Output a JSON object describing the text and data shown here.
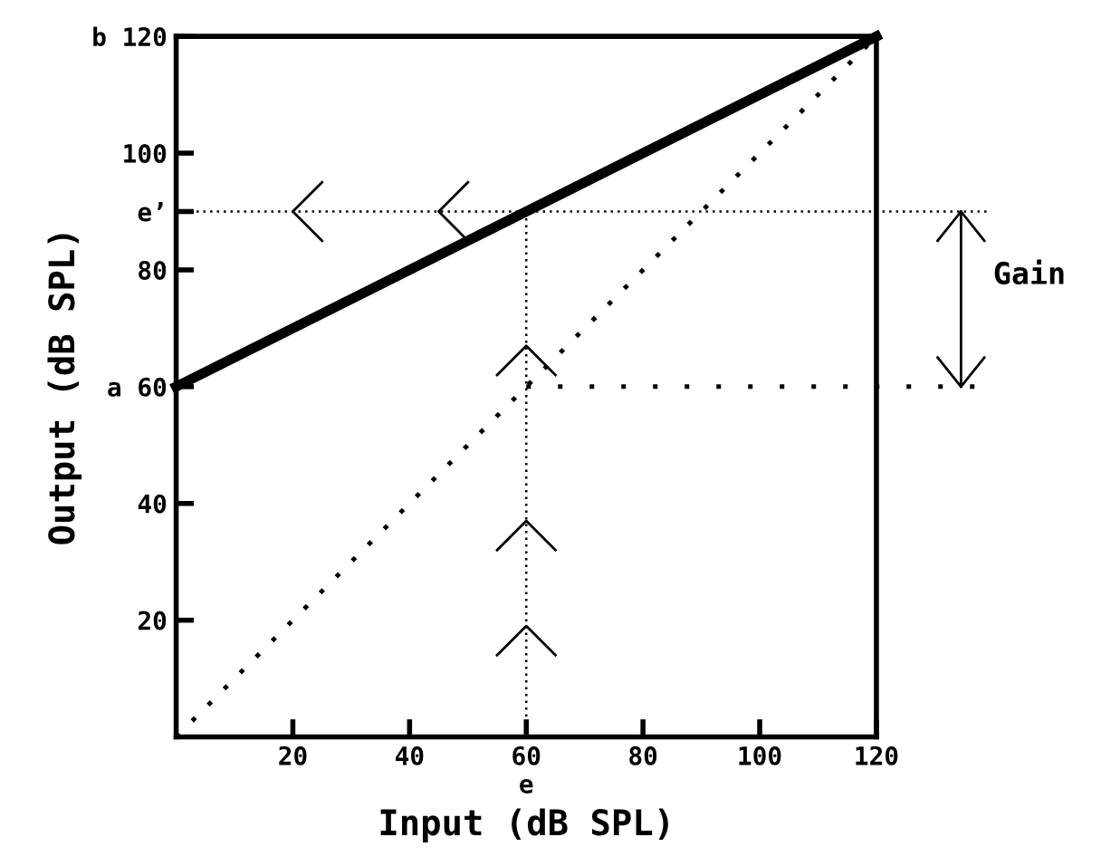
{
  "chart_data": {
    "type": "line",
    "xlabel": "Input (dB SPL)",
    "ylabel": "Output (dB SPL)",
    "annotations": [
      "Gain"
    ],
    "x": [
      0,
      120
    ],
    "xlim": [
      0,
      120
    ],
    "ylim": [
      0,
      120
    ],
    "xticks": [
      20,
      40,
      {
        "value": 60,
        "label": "60\ne"
      },
      80,
      100,
      120
    ],
    "yticks": [
      20,
      40,
      {
        "value": 60,
        "label": "a 60"
      },
      80,
      {
        "value": 90,
        "label": "e’"
      },
      100,
      {
        "value": 120,
        "label": "b 120"
      }
    ],
    "grid": false,
    "legend": false,
    "series": [
      {
        "color": "#000000",
        "values": [
          60,
          120
        ],
        "line_style": "solid"
      },
      {
        "color": "#000000",
        "values": [
          0,
          120
        ],
        "line_style": "dotted"
      }
    ],
    "ref_lines": [
      {
        "axis": "y",
        "value": 90,
        "color": "#000000",
        "line_style": "dotted"
      },
      {
        "axis": "x",
        "value": 60,
        "color": "#000000",
        "line_style": "dotted"
      },
      {
        "axis": "y",
        "value": 60,
        "color": "#000000",
        "line_style": "dotted"
      }
    ]
  }
}
